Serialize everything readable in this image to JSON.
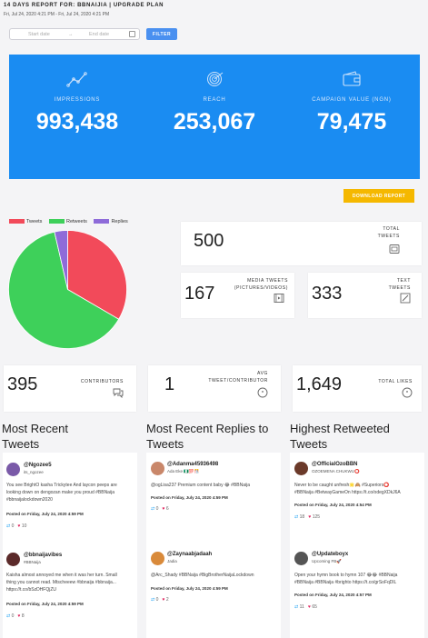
{
  "header": {
    "title": "14 DAYS REPORT FOR: BBNAIJIA | UPGRADE PLAN",
    "range": "Fri, Jul 24, 2020 4:21 PM - Fri, Jul 24, 2020 4:21 PM"
  },
  "filter": {
    "start_placeholder": "Start date",
    "arrow": "→",
    "end_placeholder": "End date",
    "button": "FILTER"
  },
  "stats": {
    "impressions": {
      "label": "IMPRESSIONS",
      "value": "993,438",
      "icon": "chart-line-icon"
    },
    "reach": {
      "label": "REACH",
      "value": "253,067",
      "icon": "target-icon"
    },
    "campaign": {
      "label": "CAMPAIGN VALUE (NGN)",
      "value": "79,475",
      "icon": "wallet-icon"
    }
  },
  "download_button": "DOWNLOAD REPORT",
  "chart_data": {
    "type": "pie",
    "categories": [
      "Tweets",
      "Retweets",
      "Replies"
    ],
    "values": [
      167,
      315,
      18
    ],
    "colors": [
      "#f24a5a",
      "#3ed05a",
      "#8e6bd9"
    ],
    "legend": "top"
  },
  "cards": {
    "total_tweets": {
      "value": "500",
      "label1": "TOTAL",
      "label2": "TWEETS"
    },
    "media_tweets": {
      "value": "167",
      "label1": "MEDIA TWEETS",
      "label2": "(PICTURES/VIDEOS)"
    },
    "text_tweets": {
      "value": "333",
      "label1": "TEXT",
      "label2": "TWEETS"
    },
    "contributors": {
      "value": "395",
      "label1": "CONTRIBUTORS"
    },
    "avg": {
      "value": "1",
      "label1": "AVG",
      "label2": "TWEET/CONTRIBUTOR"
    },
    "likes": {
      "value": "1,649",
      "label1": "TOTAL LIKES"
    }
  },
  "sections": {
    "recent": {
      "line1": "Most Recent",
      "line2": "Tweets"
    },
    "replies": {
      "line1": "Most Recent Replies to",
      "line2": "Tweets"
    },
    "retweeted": {
      "line1": "Highest Retweeted",
      "line2": "Tweets"
    }
  },
  "tweets": {
    "recent": [
      {
        "name": "@Ngozee5",
        "handle": "its_ngozee",
        "text1": "You see BrightO kasha Trickytee And laycon peeps are",
        "text2": "looking down on dengozan make you proud #BBNaija",
        "text3": "#bbnaijalockdown2020",
        "date": "Posted on Friday, July 24, 2020 4:59 PM",
        "rt": "0",
        "likes": "10"
      },
      {
        "name": "@bbnaijavibes",
        "handle": "#BBNaija",
        "text1": "Kaisha almost annoyed me when it was her turn. Small",
        "text2": "thing you cannot read. Mtscheeew #bbnaija #bbnaija...",
        "text3": "https://t.co/bSzDHFQjZU",
        "date": "Posted on Friday, July 24, 2020 4:59 PM",
        "rt": "0",
        "likes": "8"
      }
    ],
    "replies": [
      {
        "name": "@Adanma45936498",
        "handle": "Ada Eke 🇳🇬💯🎊",
        "text1": "@ogLisa237 Premium content baby 😂 #BBNaija",
        "date": "Posted on Friday, July 24, 2020 4:59 PM",
        "rt": "0",
        "likes": "6"
      },
      {
        "name": "@Zaynaabjadaah",
        "handle": "Jadia",
        "text1": "@Arc_Shady #BBNaija #BigBrotherNaijaLockdown",
        "date": "Posted on Friday, July 24, 2020 4:59 PM",
        "rt": "0",
        "likes": "2"
      }
    ],
    "retweeted": [
      {
        "name": "@OfficialOzoBBN",
        "handle": "OZOEMENA CHUKWU⭕",
        "text1": "Never to be caught unfresh🌟🙈 #Superiors⭕",
        "text2": "#BBNaija #BetwayGameOn https://t.co/odegXDkJ6A",
        "date": "Posted on Friday, July 24, 2020 4:54 PM",
        "rt": "18",
        "likes": "125"
      },
      {
        "name": "@Updateboyx",
        "handle": "Upcoming FB🚀",
        "text1": "Open your hymn book to hymn 107 😂😂 #BBNaija",
        "text2": "#BBNaija #BBNaija #brighto https://t.co/grSoFqDlL",
        "date": "Posted on Friday, July 24, 2020 4:57 PM",
        "rt": "11",
        "likes": "65"
      }
    ]
  }
}
